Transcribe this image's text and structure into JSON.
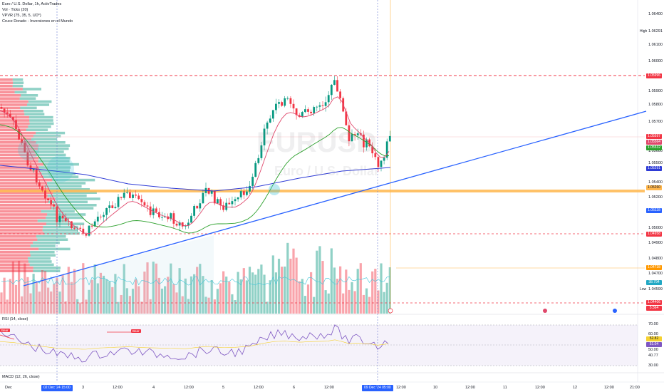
{
  "legend": {
    "line1": "Euro / U.S. Dollar, 1h, ActivTrades",
    "line2": "Vol · Ticks (20)",
    "line3": "VPVR (75, 35, 5, UD*)",
    "line4": "Cruce Dorado - Inversiones en el Mundo"
  },
  "watermark": {
    "symbol": "EURUSD",
    "name": "Euro / U.S. Dollar"
  },
  "rsi_label": "RSI (14, close)",
  "macd_label": "MACD (12, 26, close)",
  "price_axis": [
    "1.06400",
    "1.06291",
    "1.06100",
    "1.06000",
    "1.05996",
    "1.05900",
    "1.05800",
    "1.05700",
    "1.05600",
    "1.05500",
    "1.05400",
    "1.05300",
    "1.05200",
    "1.05100",
    "1.05000",
    "1.04900",
    "1.04800",
    "1.04700",
    "1.04600",
    "1.04599"
  ],
  "price_axis_high": "High",
  "price_axis_low": "Low",
  "price_tags": {
    "t1": "1.05996",
    "t2": "1.05597",
    "t3": "1.05564",
    "t4": "1.05532",
    "t5": "1.05291",
    "t6": "1.05260",
    "t7": "1.05118",
    "t8": "1.04958",
    "t9": "1.04738",
    "t10": "38.794",
    "t11": "1.04406",
    "t12": "5.564"
  },
  "rsi_axis": [
    "70.00",
    "60.00",
    "52.82",
    "51.04",
    "50.00",
    "40.77",
    "30.00"
  ],
  "signals": {
    "s1": "Bear",
    "s2": "Bear"
  },
  "time_axis": {
    "dec": "Dec",
    "t_3": "3",
    "t_12a": "12:00",
    "t_4": "4",
    "t_12b": "12:00",
    "t_5": "5",
    "t_12c": "12:00",
    "t_6": "6",
    "t_12d": "12:00",
    "t_12e": "12:00",
    "t_10": "10",
    "t_12f": "12:00",
    "t_11": "11",
    "t_12g": "12:00",
    "t_12": "12",
    "t_12h": "12:00",
    "t_21": "21:00"
  },
  "time_tags": {
    "left": "02 Dec '24   15:00",
    "right": "09 Dec '24   05:00"
  },
  "colors": {
    "up": "#089981",
    "down": "#f23645",
    "ma_blue": "#2e3bd6",
    "ma_green": "#2ba02b",
    "ma_red": "#e0476b",
    "trend": "#2962ff",
    "orange": "#ff9800"
  }
}
